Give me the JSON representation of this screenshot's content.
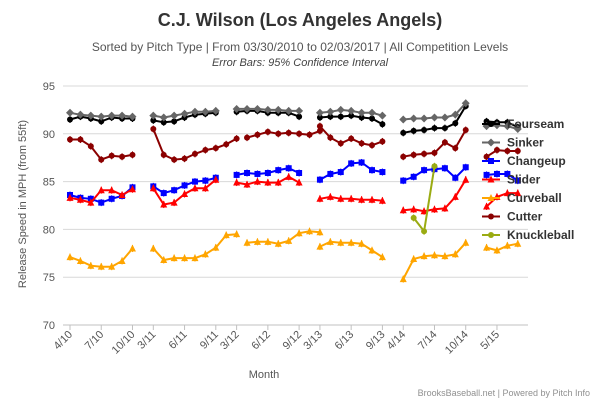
{
  "chart_data": {
    "type": "line",
    "title": "C.J. Wilson (Los Angeles Angels)",
    "subtitle": "Sorted by Pitch Type | From 03/30/2010 to 02/03/2017 | All Competition Levels",
    "subtitle2": "Error Bars: 95% Confidence Interval",
    "xlabel": "Month",
    "ylabel": "Release Speed in MPH (from 55ft)",
    "ylim": [
      70,
      95
    ],
    "yticks": [
      "70",
      "75",
      "80",
      "85",
      "90",
      "95"
    ],
    "legend_position": "right",
    "grid": true,
    "credits": "BrooksBaseball.net | Powered by Pitch Info",
    "xticks": [
      {
        "label": "4/10",
        "x": 0
      },
      {
        "label": "7/10",
        "x": 3
      },
      {
        "label": "10/10",
        "x": 6
      },
      {
        "label": "3/11",
        "x": 8
      },
      {
        "label": "6/11",
        "x": 11
      },
      {
        "label": "9/11",
        "x": 14
      },
      {
        "label": "3/12",
        "x": 16
      },
      {
        "label": "6/12",
        "x": 19
      },
      {
        "label": "9/12",
        "x": 22
      },
      {
        "label": "3/13",
        "x": 24
      },
      {
        "label": "6/13",
        "x": 27
      },
      {
        "label": "9/13",
        "x": 30
      },
      {
        "label": "4/14",
        "x": 32
      },
      {
        "label": "7/14",
        "x": 35
      },
      {
        "label": "10/14",
        "x": 38
      },
      {
        "label": "5/15",
        "x": 41
      }
    ],
    "series": [
      {
        "name": "Fourseam",
        "color": "#000000",
        "marker": "circle",
        "segments": [
          [
            [
              0,
              91.5
            ],
            [
              1,
              91.8
            ],
            [
              2,
              91.6
            ],
            [
              3,
              91.3
            ],
            [
              4,
              91.7
            ],
            [
              5,
              91.6
            ],
            [
              6,
              91.6
            ]
          ],
          [
            [
              8,
              91.4
            ],
            [
              9,
              91.2
            ],
            [
              10,
              91.3
            ],
            [
              11,
              91.7
            ],
            [
              12,
              92.0
            ],
            [
              13,
              92.1
            ],
            [
              14,
              92.2
            ]
          ],
          [
            [
              16,
              92.3
            ],
            [
              17,
              92.4
            ],
            [
              18,
              92.4
            ],
            [
              19,
              92.2
            ],
            [
              20,
              92.2
            ],
            [
              21,
              92.2
            ],
            [
              22,
              91.8
            ]
          ],
          [
            [
              24,
              91.7
            ],
            [
              25,
              91.8
            ],
            [
              26,
              91.8
            ],
            [
              27,
              91.9
            ],
            [
              28,
              91.7
            ],
            [
              29,
              91.6
            ],
            [
              30,
              91.0
            ]
          ],
          [
            [
              32,
              90.1
            ],
            [
              33,
              90.3
            ],
            [
              34,
              90.4
            ],
            [
              35,
              90.6
            ],
            [
              36,
              90.6
            ],
            [
              37,
              91.1
            ],
            [
              38,
              92.9
            ]
          ],
          [
            [
              40,
              91.3
            ],
            [
              41,
              91.2
            ],
            [
              42,
              91.2
            ],
            [
              43,
              90.7
            ]
          ]
        ]
      },
      {
        "name": "Sinker",
        "color": "#666666",
        "marker": "diamond",
        "segments": [
          [
            [
              0,
              92.2
            ],
            [
              1,
              92.0
            ],
            [
              2,
              91.9
            ],
            [
              3,
              91.8
            ],
            [
              4,
              91.9
            ],
            [
              5,
              91.9
            ],
            [
              6,
              91.8
            ]
          ],
          [
            [
              8,
              91.9
            ],
            [
              9,
              91.7
            ],
            [
              10,
              91.9
            ],
            [
              11,
              92.1
            ],
            [
              12,
              92.3
            ],
            [
              13,
              92.3
            ],
            [
              14,
              92.4
            ]
          ],
          [
            [
              16,
              92.6
            ],
            [
              17,
              92.6
            ],
            [
              18,
              92.6
            ],
            [
              19,
              92.5
            ],
            [
              20,
              92.5
            ],
            [
              21,
              92.4
            ],
            [
              22,
              92.4
            ]
          ],
          [
            [
              24,
              92.2
            ],
            [
              25,
              92.3
            ],
            [
              26,
              92.5
            ],
            [
              27,
              92.4
            ],
            [
              28,
              92.2
            ],
            [
              29,
              92.2
            ],
            [
              30,
              91.9
            ]
          ],
          [
            [
              32,
              91.5
            ],
            [
              33,
              91.6
            ],
            [
              34,
              91.6
            ],
            [
              35,
              91.7
            ],
            [
              36,
              91.7
            ],
            [
              37,
              92.0
            ],
            [
              38,
              93.2
            ]
          ],
          [
            [
              40,
              90.8
            ],
            [
              41,
              90.9
            ],
            [
              42,
              90.8
            ],
            [
              43,
              90.5
            ]
          ]
        ]
      },
      {
        "name": "Changeup",
        "color": "#0000ff",
        "marker": "square",
        "segments": [
          [
            [
              0,
              83.6
            ],
            [
              1,
              83.3
            ],
            [
              2,
              83.2
            ],
            [
              3,
              82.8
            ],
            [
              4,
              83.2
            ],
            [
              5,
              83.5
            ],
            [
              6,
              84.4
            ]
          ],
          [
            [
              8,
              84.5
            ],
            [
              9,
              83.8
            ],
            [
              10,
              84.1
            ],
            [
              11,
              84.6
            ],
            [
              12,
              85.0
            ],
            [
              13,
              85.1
            ],
            [
              14,
              85.4
            ]
          ],
          [
            [
              16,
              85.7
            ],
            [
              17,
              85.9
            ],
            [
              18,
              85.8
            ],
            [
              19,
              85.9
            ],
            [
              20,
              86.2
            ],
            [
              21,
              86.4
            ],
            [
              22,
              85.9
            ]
          ],
          [
            [
              24,
              85.2
            ],
            [
              25,
              85.8
            ],
            [
              26,
              86.0
            ],
            [
              27,
              86.9
            ],
            [
              28,
              87.0
            ],
            [
              29,
              86.2
            ],
            [
              30,
              86.0
            ]
          ],
          [
            [
              32,
              85.1
            ],
            [
              33,
              85.5
            ],
            [
              34,
              86.2
            ],
            [
              35,
              86.3
            ],
            [
              36,
              86.4
            ],
            [
              37,
              85.4
            ],
            [
              38,
              86.5
            ]
          ],
          [
            [
              40,
              85.7
            ],
            [
              41,
              85.8
            ],
            [
              42,
              85.8
            ],
            [
              43,
              85.1
            ]
          ]
        ]
      },
      {
        "name": "Slider",
        "color": "#ff0000",
        "marker": "triangle",
        "segments": [
          [
            [
              0,
              83.3
            ],
            [
              1,
              83.1
            ],
            [
              2,
              82.8
            ],
            [
              3,
              84.1
            ],
            [
              4,
              84.1
            ],
            [
              5,
              83.6
            ],
            [
              6,
              84.2
            ]
          ],
          [
            [
              8,
              84.3
            ],
            [
              9,
              82.6
            ],
            [
              10,
              82.8
            ],
            [
              11,
              83.7
            ],
            [
              12,
              84.3
            ],
            [
              13,
              84.3
            ],
            [
              14,
              85.2
            ]
          ],
          [
            [
              16,
              84.9
            ],
            [
              17,
              84.7
            ],
            [
              18,
              85.0
            ],
            [
              19,
              84.9
            ],
            [
              20,
              84.9
            ],
            [
              21,
              85.5
            ],
            [
              22,
              84.9
            ]
          ],
          [
            [
              24,
              83.2
            ],
            [
              25,
              83.4
            ],
            [
              26,
              83.2
            ],
            [
              27,
              83.2
            ],
            [
              28,
              83.1
            ],
            [
              29,
              83.1
            ],
            [
              30,
              83.0
            ]
          ],
          [
            [
              32,
              82.0
            ],
            [
              33,
              82.1
            ],
            [
              34,
              81.9
            ],
            [
              35,
              82.1
            ],
            [
              36,
              82.2
            ],
            [
              37,
              83.4
            ],
            [
              38,
              85.2
            ]
          ],
          [
            [
              40,
              82.4
            ],
            [
              41,
              83.4
            ],
            [
              42,
              83.8
            ],
            [
              43,
              83.8
            ]
          ]
        ]
      },
      {
        "name": "Curveball",
        "color": "#ffa500",
        "marker": "triangle",
        "segments": [
          [
            [
              0,
              77.1
            ],
            [
              1,
              76.7
            ],
            [
              2,
              76.2
            ],
            [
              3,
              76.1
            ],
            [
              4,
              76.1
            ],
            [
              5,
              76.7
            ],
            [
              6,
              78.0
            ]
          ],
          [
            [
              8,
              78.0
            ],
            [
              9,
              76.8
            ],
            [
              10,
              77.0
            ],
            [
              11,
              77.0
            ],
            [
              12,
              77.0
            ],
            [
              13,
              77.4
            ],
            [
              14,
              78.1
            ],
            [
              15,
              79.4
            ],
            [
              16,
              79.5
            ]
          ],
          [
            [
              17,
              78.6
            ],
            [
              18,
              78.7
            ],
            [
              19,
              78.7
            ],
            [
              20,
              78.5
            ],
            [
              21,
              78.8
            ],
            [
              22,
              79.6
            ],
            [
              23,
              79.8
            ],
            [
              24,
              79.7
            ]
          ],
          [
            [
              24,
              78.2
            ],
            [
              25,
              78.7
            ],
            [
              26,
              78.6
            ],
            [
              27,
              78.6
            ],
            [
              28,
              78.5
            ],
            [
              29,
              77.8
            ],
            [
              30,
              77.1
            ]
          ],
          [
            [
              32,
              74.8
            ],
            [
              33,
              76.9
            ],
            [
              34,
              77.2
            ],
            [
              35,
              77.3
            ],
            [
              36,
              77.2
            ],
            [
              37,
              77.4
            ],
            [
              38,
              78.6
            ]
          ],
          [
            [
              40,
              78.1
            ],
            [
              41,
              77.8
            ],
            [
              42,
              78.3
            ],
            [
              43,
              78.5
            ]
          ]
        ]
      },
      {
        "name": "Cutter",
        "color": "#8b0000",
        "marker": "circle",
        "segments": [
          [
            [
              0,
              89.4
            ],
            [
              1,
              89.4
            ],
            [
              2,
              88.7
            ],
            [
              3,
              87.3
            ],
            [
              4,
              87.7
            ],
            [
              5,
              87.6
            ],
            [
              6,
              87.8
            ]
          ],
          [
            [
              8,
              90.5
            ],
            [
              9,
              87.8
            ],
            [
              10,
              87.3
            ],
            [
              11,
              87.4
            ],
            [
              12,
              87.9
            ],
            [
              13,
              88.3
            ],
            [
              14,
              88.5
            ],
            [
              15,
              88.9
            ],
            [
              16,
              89.5
            ]
          ],
          [
            [
              17,
              89.6
            ],
            [
              18,
              89.9
            ],
            [
              19,
              90.2
            ],
            [
              20,
              90.0
            ],
            [
              21,
              90.1
            ],
            [
              22,
              90.0
            ],
            [
              23,
              89.9
            ],
            [
              24,
              90.3
            ]
          ],
          [
            [
              24,
              90.8
            ],
            [
              25,
              89.6
            ],
            [
              26,
              89.0
            ],
            [
              27,
              89.5
            ],
            [
              28,
              89.0
            ],
            [
              29,
              88.8
            ],
            [
              30,
              89.2
            ]
          ],
          [
            [
              32,
              87.6
            ],
            [
              33,
              87.8
            ],
            [
              34,
              87.9
            ],
            [
              35,
              88.0
            ],
            [
              36,
              89.1
            ],
            [
              37,
              88.5
            ],
            [
              38,
              90.4
            ]
          ],
          [
            [
              40,
              87.6
            ],
            [
              41,
              88.3
            ],
            [
              42,
              88.2
            ],
            [
              43,
              88.2
            ]
          ]
        ]
      },
      {
        "name": "Knuckleball",
        "color": "#9aab12",
        "marker": "circle",
        "segments": [
          [
            [
              33,
              81.2
            ],
            [
              34,
              79.8
            ],
            [
              35,
              86.6
            ]
          ]
        ]
      }
    ]
  }
}
